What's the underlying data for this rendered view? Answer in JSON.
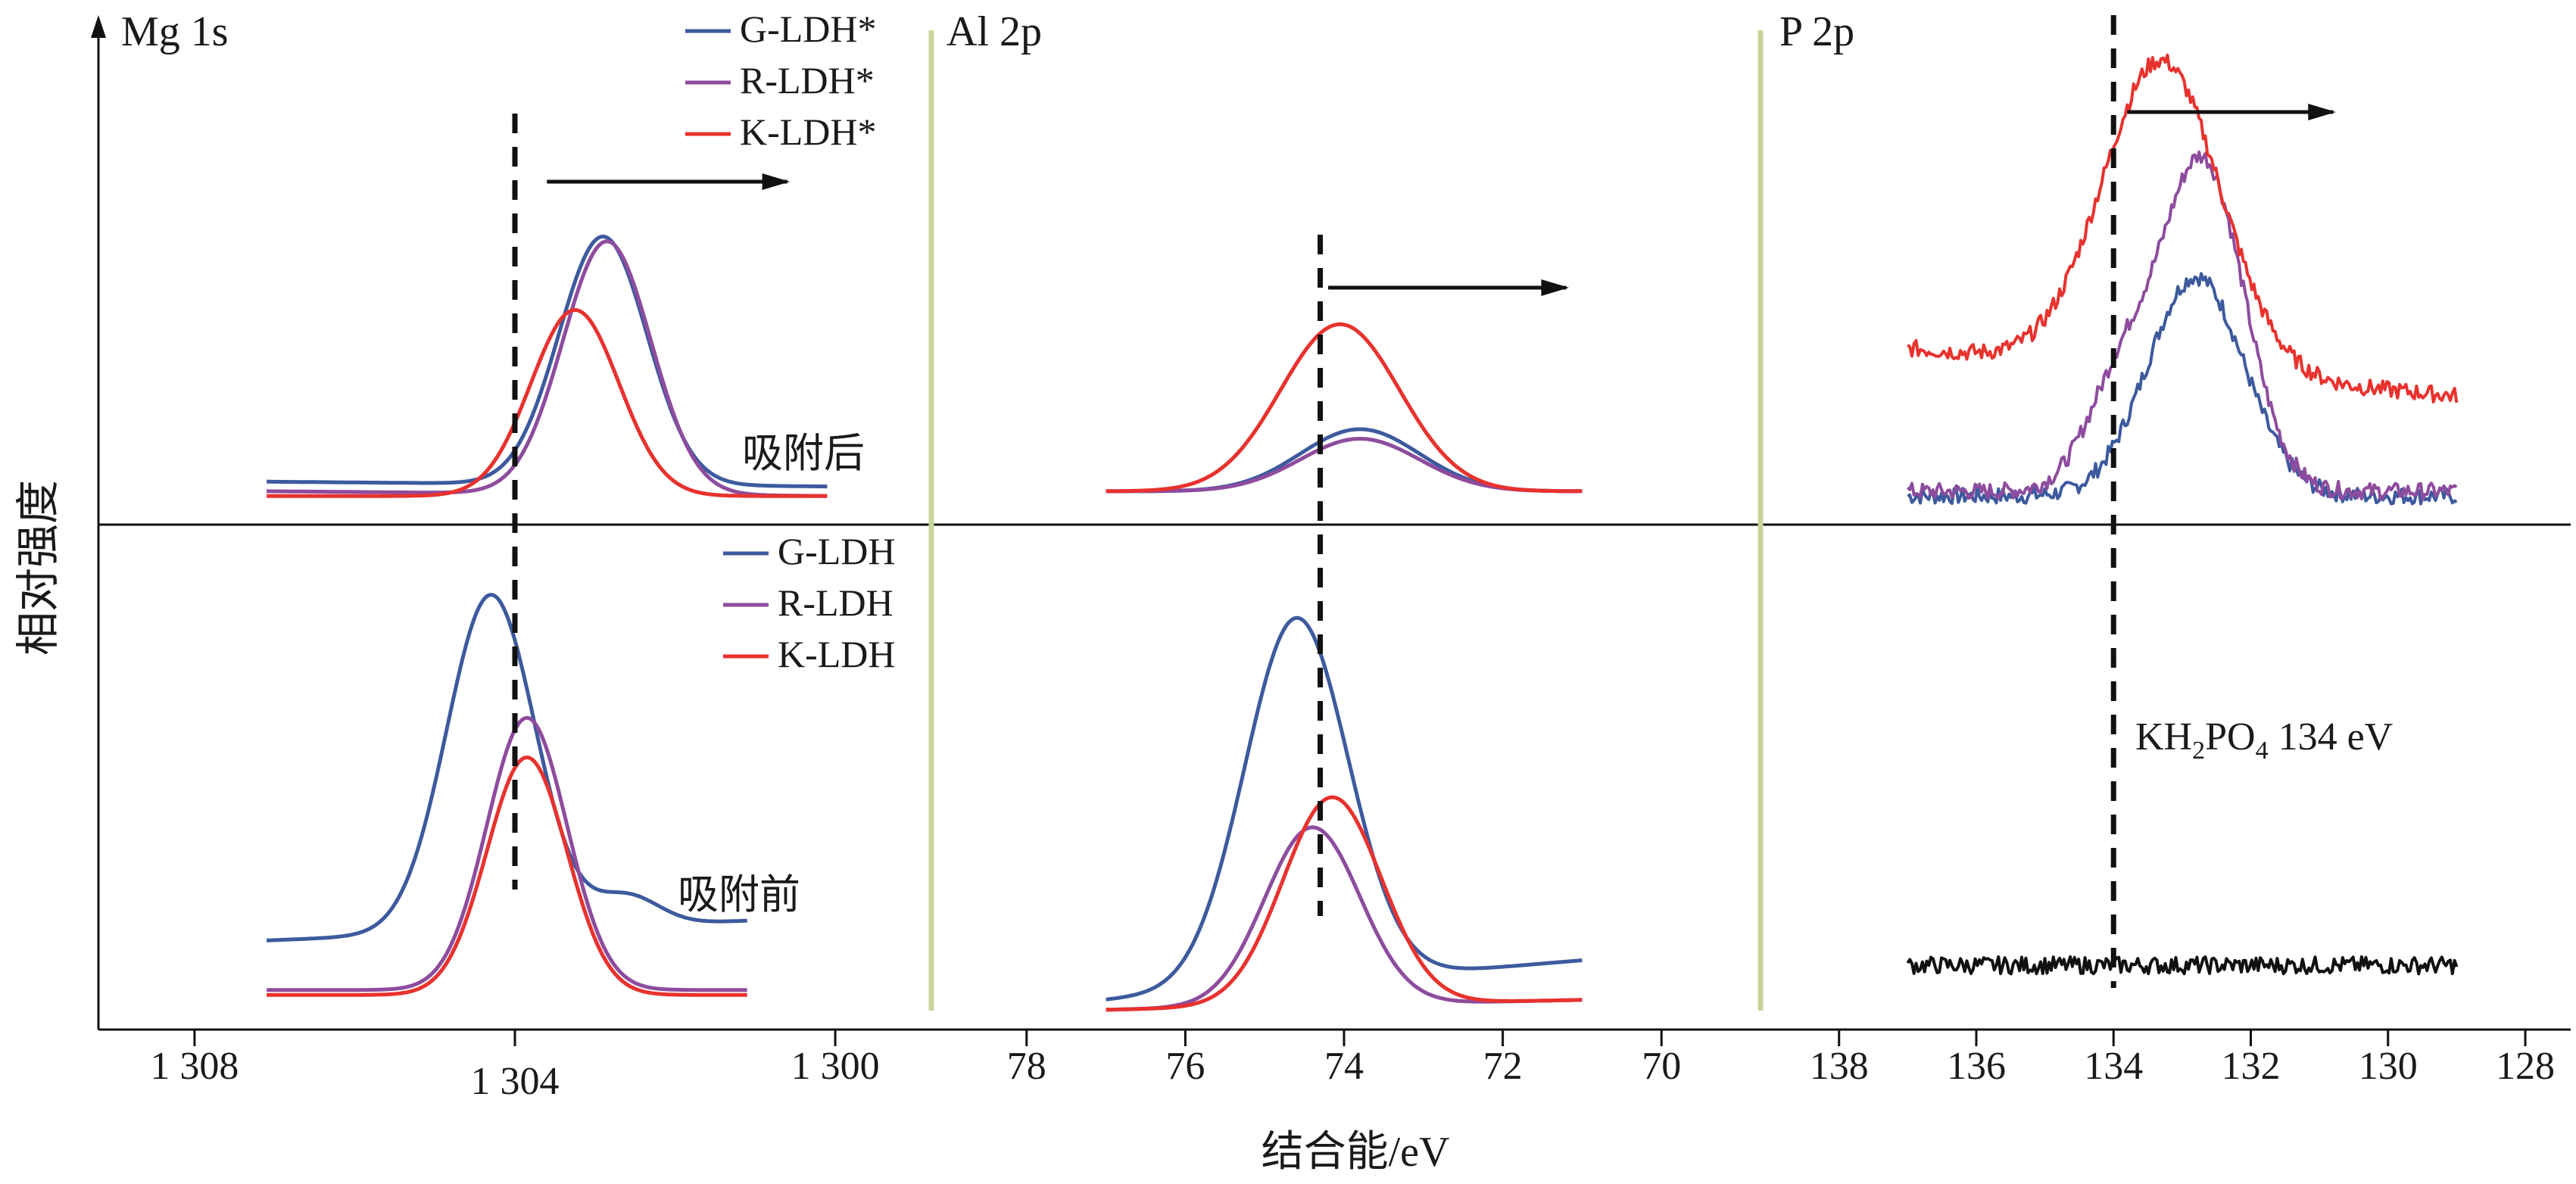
{
  "chart_data": {
    "type": "line",
    "ylabel": "相对强度",
    "xlabel": "结合能/eV",
    "grid": false,
    "y_ticks": "none",
    "colors": {
      "G": "#3d5a9e",
      "R": "#8e4c9e",
      "K": "#e8322e",
      "ref": "#111111",
      "divider": "#c7d59a",
      "axis": "#111111"
    },
    "legends": {
      "after": [
        "G-LDH*",
        "R-LDH*",
        "K-LDH*"
      ],
      "before": [
        "G-LDH",
        "R-LDH",
        "K-LDH"
      ]
    },
    "annotations": {
      "after": "吸附后",
      "before": "吸附前",
      "kh2po4": {
        "pre": "KH",
        "sub1": "2",
        "mid": "PO",
        "sub2": "4",
        "post": " 134 eV"
      }
    },
    "panels": [
      {
        "id": "mg",
        "title": "Mg 1s",
        "xlim": [
          1309.2,
          1298.8
        ],
        "ticks": [
          {
            "v": 1308,
            "label": "1 308"
          },
          {
            "v": 1304,
            "label": "1 304"
          },
          {
            "v": 1300,
            "label": "1 300"
          }
        ],
        "ref_x_after": 1304.0,
        "ref_x_before": 1304.0,
        "arrow_after": [
          1303.6,
          1300.6
        ],
        "series_after": [
          {
            "key": "G",
            "name": "G-LDH*",
            "x_range": [
              1307.1,
              1300.1
            ],
            "baseline": 0.08,
            "peaks": [
              {
                "c": 1302.9,
                "a": 0.52,
                "w": 0.55
              }
            ],
            "slope": 0.01
          },
          {
            "key": "R",
            "name": "R-LDH*",
            "x_range": [
              1307.1,
              1300.1
            ],
            "baseline": 0.06,
            "peaks": [
              {
                "c": 1302.85,
                "a": 0.53,
                "w": 0.55
              }
            ],
            "slope": 0.01
          },
          {
            "key": "K",
            "name": "K-LDH*",
            "x_range": [
              1307.1,
              1300.1
            ],
            "baseline": 0.06,
            "peaks": [
              {
                "c": 1303.25,
                "a": 0.39,
                "w": 0.55
              }
            ],
            "slope": 0.0
          }
        ],
        "series_before": [
          {
            "key": "G",
            "name": "G-LDH",
            "x_range": [
              1307.1,
              1301.1
            ],
            "baseline": 0.22,
            "peaks": [
              {
                "c": 1304.3,
                "a": 0.68,
                "w": 0.55
              },
              {
                "c": 1302.6,
                "a": 0.06,
                "w": 0.4
              }
            ],
            "slope": -0.04
          },
          {
            "key": "R",
            "name": "R-LDH",
            "x_range": [
              1307.1,
              1301.1
            ],
            "baseline": 0.08,
            "peaks": [
              {
                "c": 1303.85,
                "a": 0.55,
                "w": 0.5
              }
            ],
            "slope": 0.0
          },
          {
            "key": "K",
            "name": "K-LDH",
            "x_range": [
              1307.1,
              1301.1
            ],
            "baseline": 0.07,
            "peaks": [
              {
                "c": 1303.85,
                "a": 0.48,
                "w": 0.5
              }
            ],
            "slope": 0.0
          }
        ]
      },
      {
        "id": "al",
        "title": "Al 2p",
        "xlim": [
          79.2,
          68.8
        ],
        "ticks": [
          {
            "v": 78,
            "label": "78"
          },
          {
            "v": 76,
            "label": "76"
          },
          {
            "v": 74,
            "label": "74"
          },
          {
            "v": 72,
            "label": "72"
          },
          {
            "v": 70,
            "label": "70"
          }
        ],
        "ref_x_after": 74.3,
        "ref_x_before": 74.3,
        "arrow_after": [
          74.2,
          71.2
        ],
        "series_after": [
          {
            "key": "G",
            "name": "G-LDH*",
            "x_range": [
              77.0,
              71.0
            ],
            "baseline": 0.07,
            "peaks": [
              {
                "c": 73.8,
                "a": 0.13,
                "w": 0.75
              }
            ],
            "slope": 0.0
          },
          {
            "key": "R",
            "name": "R-LDH*",
            "x_range": [
              77.0,
              71.0
            ],
            "baseline": 0.07,
            "peaks": [
              {
                "c": 73.8,
                "a": 0.11,
                "w": 0.75
              }
            ],
            "slope": 0.0
          },
          {
            "key": "K",
            "name": "K-LDH*",
            "x_range": [
              77.0,
              71.0
            ],
            "baseline": 0.07,
            "peaks": [
              {
                "c": 74.05,
                "a": 0.35,
                "w": 0.75
              }
            ],
            "slope": 0.0
          }
        ],
        "series_before": [
          {
            "key": "G",
            "name": "G-LDH",
            "x_range": [
              77.0,
              71.0
            ],
            "baseline": 0.14,
            "peaks": [
              {
                "c": 74.6,
                "a": 0.74,
                "w": 0.65
              }
            ],
            "slope": -0.08
          },
          {
            "key": "R",
            "name": "R-LDH",
            "x_range": [
              77.0,
              71.0
            ],
            "baseline": 0.06,
            "peaks": [
              {
                "c": 74.4,
                "a": 0.36,
                "w": 0.6
              }
            ],
            "slope": -0.02
          },
          {
            "key": "K",
            "name": "K-LDH",
            "x_range": [
              77.0,
              71.0
            ],
            "baseline": 0.06,
            "peaks": [
              {
                "c": 74.15,
                "a": 0.42,
                "w": 0.62
              }
            ],
            "slope": -0.02
          }
        ]
      },
      {
        "id": "p",
        "title": "P 2p",
        "xlim": [
          139.2,
          128.0
        ],
        "ticks": [
          {
            "v": 138,
            "label": "138"
          },
          {
            "v": 136,
            "label": "136"
          },
          {
            "v": 134,
            "label": "134"
          },
          {
            "v": 132,
            "label": "132"
          },
          {
            "v": 130,
            "label": "130"
          },
          {
            "v": 128,
            "label": "128"
          }
        ],
        "ref_x_after": 133.9,
        "ref_x_before": 134.0,
        "arrow_after": [
          133.8,
          130.8
        ],
        "series_after": [
          {
            "key": "G",
            "name": "G-LDH*",
            "x_range": [
              137.0,
              129.0
            ],
            "baseline": 0.06,
            "peaks": [
              {
                "c": 132.8,
                "a": 0.46,
                "w": 0.7
              }
            ],
            "slope": 0.0
          },
          {
            "key": "R",
            "name": "R-LDH*",
            "x_range": [
              137.0,
              129.0
            ],
            "baseline": 0.07,
            "peaks": [
              {
                "c": 132.7,
                "a": 0.69,
                "w": 0.6
              },
              {
                "c": 133.9,
                "a": 0.22,
                "w": 0.5
              }
            ],
            "slope": 0.0
          },
          {
            "key": "K",
            "name": "K-LDH*",
            "x_range": [
              137.0,
              129.0
            ],
            "baseline": 0.27,
            "peaks": [
              {
                "c": 133.3,
                "a": 0.65,
                "w": 0.85
              }
            ],
            "slope": 0.1
          }
        ],
        "series_before": [
          {
            "key": "ref",
            "name": "",
            "x_range": [
              137.0,
              129.0
            ],
            "baseline": 0.13,
            "peaks": [],
            "slope": 0.0
          }
        ]
      }
    ]
  }
}
